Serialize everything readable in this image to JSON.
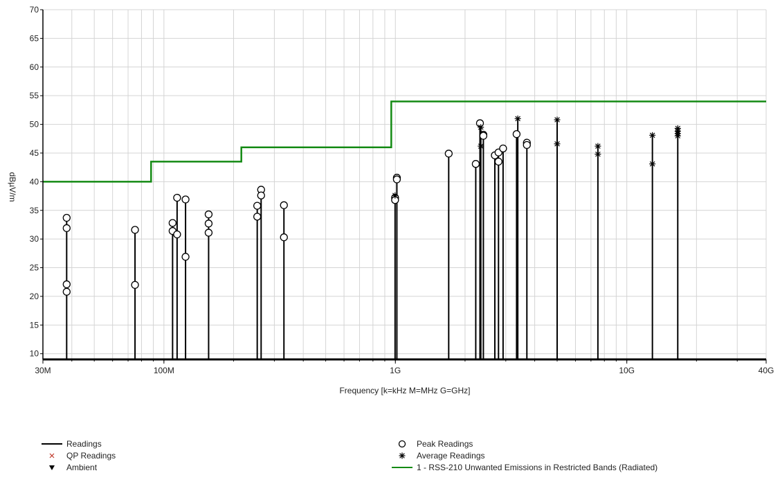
{
  "colors": {
    "background": "#ffffff",
    "grid": "#d4d4d4",
    "axis": "#000000",
    "readings": "#000000",
    "limit": "#138a13",
    "qp_marker": "#c0392b"
  },
  "chart_data": {
    "type": "line",
    "title": "",
    "xlabel": "Frequency [k=kHz M=MHz G=GHz]",
    "ylabel": "dBµV/m",
    "xscale": "log",
    "xlim_mhz": [
      30,
      40000
    ],
    "ylim": [
      9,
      70
    ],
    "grid": true,
    "legend_position": "bottom",
    "x_ticks": [
      {
        "value_mhz": 30,
        "label": "30M"
      },
      {
        "value_mhz": 100,
        "label": "100M"
      },
      {
        "value_mhz": 1000,
        "label": "1G"
      },
      {
        "value_mhz": 10000,
        "label": "10G"
      },
      {
        "value_mhz": 40000,
        "label": "40G"
      }
    ],
    "y_ticks": [
      {
        "value": 10,
        "label": "10"
      },
      {
        "value": 15,
        "label": "15"
      },
      {
        "value": 20,
        "label": "20"
      },
      {
        "value": 25,
        "label": "25"
      },
      {
        "value": 30,
        "label": "30"
      },
      {
        "value": 35,
        "label": "35"
      },
      {
        "value": 40,
        "label": "40"
      },
      {
        "value": 45,
        "label": "45"
      },
      {
        "value": 50,
        "label": "50"
      },
      {
        "value": 55,
        "label": "55"
      },
      {
        "value": 60,
        "label": "60"
      },
      {
        "value": 65,
        "label": "65"
      },
      {
        "value": 70,
        "label": "70"
      }
    ],
    "limit_line": {
      "name": "1 - RSS-210 Unwanted Emissions in Restricted Bands (Radiated)",
      "steps": [
        {
          "from_mhz": 30,
          "to_mhz": 88,
          "value": 40
        },
        {
          "from_mhz": 88,
          "to_mhz": 216,
          "value": 43.5
        },
        {
          "from_mhz": 216,
          "to_mhz": 960,
          "value": 46
        },
        {
          "from_mhz": 960,
          "to_mhz": 40000,
          "value": 54
        }
      ]
    },
    "peak_readings": [
      {
        "f_mhz": 38,
        "values": [
          33.7,
          31.9,
          22.1,
          20.8
        ]
      },
      {
        "f_mhz": 75,
        "values": [
          31.6,
          22.0
        ]
      },
      {
        "f_mhz": 109,
        "values": [
          32.8,
          31.4
        ]
      },
      {
        "f_mhz": 114,
        "values": [
          37.2,
          30.8
        ]
      },
      {
        "f_mhz": 124,
        "values": [
          36.9,
          26.9
        ]
      },
      {
        "f_mhz": 156,
        "values": [
          34.3,
          32.7,
          31.1
        ]
      },
      {
        "f_mhz": 253,
        "values": [
          35.8,
          33.9
        ]
      },
      {
        "f_mhz": 263,
        "values": [
          38.6,
          37.6
        ]
      },
      {
        "f_mhz": 330,
        "values": [
          35.9,
          30.3
        ]
      },
      {
        "f_mhz": 997,
        "values": [
          37.2,
          36.8
        ]
      },
      {
        "f_mhz": 1015,
        "values": [
          40.7,
          40.4
        ]
      },
      {
        "f_mhz": 1700,
        "values": [
          44.9
        ]
      },
      {
        "f_mhz": 2225,
        "values": [
          43.1
        ]
      },
      {
        "f_mhz": 2320,
        "values": [
          50.2
        ]
      },
      {
        "f_mhz": 2400,
        "values": [
          48.2,
          48.0
        ]
      },
      {
        "f_mhz": 2690,
        "values": [
          44.6
        ]
      },
      {
        "f_mhz": 2790,
        "values": [
          45.1,
          43.5
        ]
      },
      {
        "f_mhz": 2920,
        "values": [
          45.8
        ]
      },
      {
        "f_mhz": 3340,
        "values": [
          48.3
        ]
      },
      {
        "f_mhz": 3700,
        "values": [
          46.8,
          46.4
        ]
      }
    ],
    "average_readings": [
      {
        "f_mhz": 997,
        "values": [
          37.6
        ]
      },
      {
        "f_mhz": 2340,
        "values": [
          49.5,
          46.2
        ]
      },
      {
        "f_mhz": 3380,
        "values": [
          51.0
        ]
      },
      {
        "f_mhz": 5000,
        "values": [
          50.8,
          46.6
        ]
      },
      {
        "f_mhz": 7500,
        "values": [
          46.2,
          44.8
        ]
      },
      {
        "f_mhz": 12900,
        "values": [
          48.1,
          43.1
        ]
      },
      {
        "f_mhz": 16600,
        "values": [
          49.3,
          48.8,
          48.4,
          48.0
        ]
      }
    ],
    "qp_readings": [],
    "ambient": [],
    "legend": [
      {
        "key": "readings",
        "label": "Readings",
        "symbol": "line"
      },
      {
        "key": "qp",
        "label": "QP Readings",
        "symbol": "x"
      },
      {
        "key": "ambient",
        "label": "Ambient",
        "symbol": "triangle"
      },
      {
        "key": "peak",
        "label": "Peak Readings",
        "symbol": "circle"
      },
      {
        "key": "average",
        "label": "Average Readings",
        "symbol": "asterisk"
      },
      {
        "key": "limit",
        "label": "1 - RSS-210 Unwanted Emissions in Restricted Bands (Radiated)",
        "symbol": "green-line"
      }
    ]
  }
}
